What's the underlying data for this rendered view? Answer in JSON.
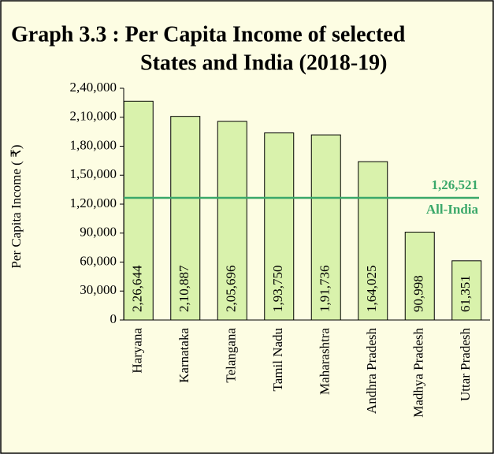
{
  "chart_data": {
    "type": "bar",
    "title": [
      "Graph 3.3 : Per Capita Income of selected",
      "States and India (2018-19)"
    ],
    "ylabel": "Per Capita Income ( ₹)",
    "categories": [
      "Haryana",
      "Karnataka",
      "Telangana",
      "Tamil Nadu",
      "Maharashtra",
      "Andhra Pradesh",
      "Madhya Pradesh",
      "Uttar Pradesh"
    ],
    "values": [
      226644,
      210887,
      205696,
      193750,
      191736,
      164025,
      90998,
      61351
    ],
    "value_labels": [
      "2,26,644",
      "2,10,887",
      "2,05,696",
      "1,93,750",
      "1,91,736",
      "1,64,025",
      "90,998",
      "61,351"
    ],
    "color": "#d9f2ac",
    "ylim": [
      0,
      240000
    ],
    "yticks": [
      0,
      {
        "value": 30000,
        "label": "30,000"
      },
      {
        "value": 60000,
        "label": "60,000"
      },
      {
        "value": 90000,
        "label": "90,000"
      },
      {
        "value": 120000,
        "label": "1,20,000"
      },
      {
        "value": 150000,
        "label": "1,50,000"
      },
      {
        "value": 180000,
        "label": "1,80,000"
      },
      {
        "value": 210000,
        "label": "2,10,000"
      },
      {
        "value": 240000,
        "label": "2,40,000"
      }
    ],
    "grid": false,
    "reference_line": {
      "value": 126521,
      "label": "1,26,521",
      "name": "All-India",
      "color": "#3aa86a"
    }
  }
}
